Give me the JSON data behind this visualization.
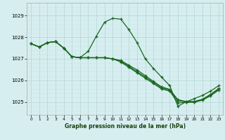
{
  "title": "Graphe pression niveau de la mer (hPa)",
  "background_color": "#d7eef0",
  "grid_color_major": "#b8d8d8",
  "grid_color_minor": "#c8e4e4",
  "line_color": "#1a6620",
  "ylim": [
    1024.4,
    1029.6
  ],
  "xlim": [
    -0.5,
    23.5
  ],
  "yticks": [
    1025,
    1026,
    1027,
    1028,
    1029
  ],
  "xticks": [
    0,
    1,
    2,
    3,
    4,
    5,
    6,
    7,
    8,
    9,
    10,
    11,
    12,
    13,
    14,
    15,
    16,
    17,
    18,
    19,
    20,
    21,
    22,
    23
  ],
  "series": [
    [
      1027.7,
      1027.55,
      1027.75,
      1027.8,
      1027.5,
      1027.1,
      1027.05,
      1027.35,
      1028.05,
      1028.7,
      1028.88,
      1028.84,
      1028.35,
      1027.75,
      1027.0,
      1026.55,
      1026.15,
      1025.75,
      1024.8,
      1025.0,
      1025.15,
      1025.3,
      1025.5,
      1025.75
    ],
    [
      1027.7,
      1027.55,
      1027.75,
      1027.8,
      1027.5,
      1027.1,
      1027.05,
      1027.05,
      1027.05,
      1027.05,
      1027.0,
      1026.9,
      1026.65,
      1026.4,
      1026.15,
      1025.9,
      1025.65,
      1025.55,
      1025.05,
      1025.0,
      1025.0,
      1025.1,
      1025.3,
      1025.6
    ],
    [
      1027.7,
      1027.55,
      1027.75,
      1027.8,
      1027.5,
      1027.1,
      1027.05,
      1027.05,
      1027.05,
      1027.05,
      1027.0,
      1026.85,
      1026.6,
      1026.35,
      1026.1,
      1025.85,
      1025.6,
      1025.5,
      1024.95,
      1024.98,
      1024.98,
      1025.08,
      1025.28,
      1025.55
    ],
    [
      1027.7,
      1027.55,
      1027.75,
      1027.8,
      1027.5,
      1027.1,
      1027.05,
      1027.05,
      1027.05,
      1027.05,
      1027.0,
      1026.92,
      1026.7,
      1026.48,
      1026.22,
      1025.95,
      1025.7,
      1025.58,
      1025.1,
      1025.02,
      1025.02,
      1025.12,
      1025.35,
      1025.62
    ]
  ]
}
